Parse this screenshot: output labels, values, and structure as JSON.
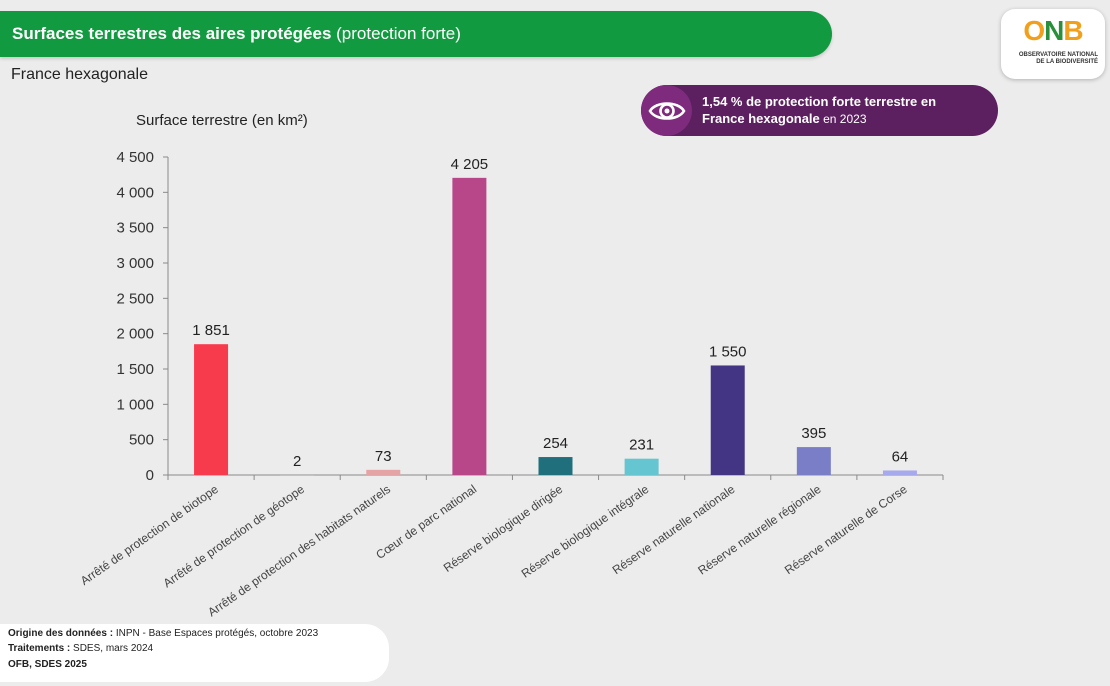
{
  "header": {
    "title_bold": "Surfaces terrestres des aires protégées",
    "title_rest": " (protection forte)"
  },
  "logo": {
    "text_o": "O",
    "text_n": "N",
    "text_b": "B",
    "line1": "OBSERVATOIRE NATIONAL",
    "line2": "DE LA BIODIVERSITÉ"
  },
  "subtitle": "France hexagonale",
  "callout": {
    "icon": "eye-icon",
    "bold_line1": "1,54 % de protection forte terrestre en",
    "bold_line2": "France hexagonale",
    "rest_line2": " en  2023"
  },
  "chart_data": {
    "type": "bar",
    "ylabel": "Surface terrestre (en km²)",
    "ylim": [
      0,
      4500
    ],
    "yticks": [
      0,
      500,
      1000,
      1500,
      2000,
      2500,
      3000,
      3500,
      4000,
      4500
    ],
    "ytick_labels": [
      "0",
      "500",
      "1 000",
      "1 500",
      "2 000",
      "2 500",
      "3 000",
      "3 500",
      "4 000",
      "4 500"
    ],
    "categories": [
      "Arrêté de protection de biotope",
      "Arrêté de protection de géotope",
      "Arrêté de protection des habitats naturels",
      "Cœur de parc national",
      "Réserve biologique dirigée",
      "Réserve biologique intégrale",
      "Réserve naturelle nationale",
      "Réserve naturelle régionale",
      "Réserve naturelle de Corse"
    ],
    "values": [
      1851,
      2,
      73,
      4205,
      254,
      231,
      1550,
      395,
      64
    ],
    "value_labels": [
      "1 851",
      "2",
      "73",
      "4 205",
      "254",
      "231",
      "1 550",
      "395",
      "64"
    ],
    "colors": [
      "#f83a4d",
      "#9a9a9a",
      "#e6a3a6",
      "#b8478a",
      "#1f707c",
      "#65c6d1",
      "#443584",
      "#7a7ec6",
      "#a7a9ee"
    ],
    "grid": false,
    "legend": "none"
  },
  "footer": {
    "line1_bold": "Origine des données : ",
    "line1_rest": "INPN  - Base Espaces protégés, octobre 2023",
    "line2_bold": "Traitements : ",
    "line2_rest": "SDES, mars 2024",
    "line3_bold": "OFB, SDES 2025"
  }
}
